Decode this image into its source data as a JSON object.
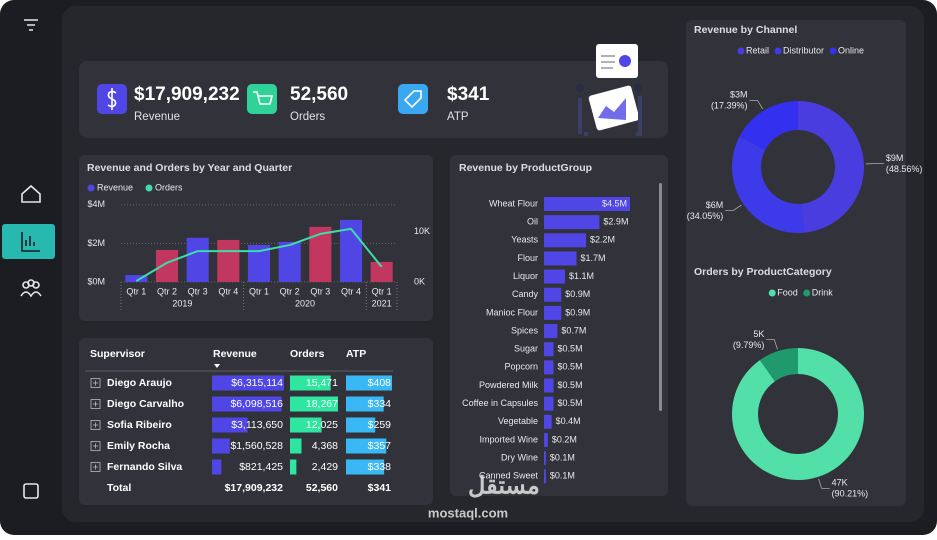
{
  "kpis": [
    {
      "value": "$17,909,232",
      "label": "Revenue"
    },
    {
      "value": "52,560",
      "label": "Orders"
    },
    {
      "value": "$341",
      "label": "ATP"
    }
  ],
  "chart_data": [
    {
      "type": "combo",
      "title": "Revenue and Orders by Year and Quarter",
      "categories": [
        "Qtr 1",
        "Qtr 2",
        "Qtr 3",
        "Qtr 4",
        "Qtr 1",
        "Qtr 2",
        "Qtr 3",
        "Qtr 4",
        "Qtr 1"
      ],
      "groups": [
        {
          "label": "2019",
          "span": 4
        },
        {
          "label": "2020",
          "span": 4
        },
        {
          "label": "2021",
          "span": 1
        }
      ],
      "series": [
        {
          "name": "Revenue",
          "type": "bar",
          "color": "#4f46e5",
          "colors": [
            "#4f46e5",
            "#c2375f",
            "#4f46e5",
            "#c2375f",
            "#4f46e5",
            "#4f46e5",
            "#c2375f",
            "#4f46e5",
            "#c2375f"
          ],
          "values": [
            360000,
            1660000,
            2290000,
            2180000,
            1920000,
            2080000,
            2860000,
            3220000,
            1040000
          ]
        },
        {
          "name": "Orders",
          "type": "line",
          "axis": "y2",
          "color": "#3ddcaa",
          "values": [
            200,
            3800,
            6100,
            6100,
            6100,
            7300,
            9500,
            10500,
            3000
          ]
        }
      ],
      "ylim": [
        0,
        4200000
      ],
      "yticks": [
        {
          "value": 0,
          "label": "$0M"
        },
        {
          "value": 2000000,
          "label": "$2M"
        },
        {
          "value": 4000000,
          "label": "$4M"
        }
      ],
      "y2lim": [
        0,
        16000
      ],
      "y2ticks": [
        {
          "value": 0,
          "label": "0K"
        },
        {
          "value": 10000,
          "label": "10K"
        }
      ],
      "grid": true
    },
    {
      "type": "hbar",
      "title": "Revenue by ProductGroup",
      "color": "#4f46e5",
      "categories": [
        "Wheat Flour",
        "Oil",
        "Yeasts",
        "Flour",
        "Liquor",
        "Candy",
        "Manioc Flour",
        "Spices",
        "Sugar",
        "Popcorn",
        "Powdered Milk",
        "Coffee in Capsules",
        "Vegetable",
        "Imported Wine",
        "Dry Wine",
        "Canned Sweet"
      ],
      "values": [
        4500000,
        2900000,
        2200000,
        1700000,
        1100000,
        900000,
        900000,
        700000,
        500000,
        500000,
        500000,
        500000,
        400000,
        200000,
        100000,
        100000
      ],
      "value_labels": [
        "$4.5M",
        "$2.9M",
        "$2.2M",
        "$1.7M",
        "$1.1M",
        "$0.9M",
        "$0.9M",
        "$0.7M",
        "$0.5M",
        "$0.5M",
        "$0.5M",
        "$0.5M",
        "$0.4M",
        "$0.2M",
        "$0.1M",
        "$0.1M"
      ]
    },
    {
      "type": "donut",
      "title": "Revenue by Channel",
      "categories": [
        "Retail",
        "Distributor",
        "Online"
      ],
      "colors": [
        "#4a3de0",
        "#3d3be9",
        "#3430f0"
      ],
      "values": [
        8696723,
        6098094,
        3114415
      ],
      "value_labels": [
        "$9M",
        "$6M",
        "$3M"
      ],
      "percent_labels": [
        "(48.56%)",
        "(34.05%)",
        "(17.39%)"
      ]
    },
    {
      "type": "donut",
      "title": "Orders by ProductCategory",
      "categories": [
        "Food",
        "Drink"
      ],
      "colors": [
        "#52dfa8",
        "#1f9a6c"
      ],
      "values": [
        47414,
        5146
      ],
      "value_labels": [
        "47K",
        "5K"
      ],
      "percent_labels": [
        "(90.21%)",
        "(9.79%)"
      ]
    }
  ],
  "table": {
    "columns": [
      "Supervisor",
      "Revenue",
      "Orders",
      "ATP"
    ],
    "rows": [
      [
        "Diego Araujo",
        {
          "value": 6315114,
          "label": "$6,315,114"
        },
        {
          "value": 15471,
          "label": "15,471"
        },
        {
          "value": 408,
          "label": "$408"
        }
      ],
      [
        "Diego Carvalho",
        {
          "value": 6098516,
          "label": "$6,098,516"
        },
        {
          "value": 18267,
          "label": "18,267"
        },
        {
          "value": 334,
          "label": "$334"
        }
      ],
      [
        "Sofia Ribeiro",
        {
          "value": 3113650,
          "label": "$3,113,650"
        },
        {
          "value": 12025,
          "label": "12,025"
        },
        {
          "value": 259,
          "label": "$259"
        }
      ],
      [
        "Emily Rocha",
        {
          "value": 1560528,
          "label": "$1,560,528"
        },
        {
          "value": 4368,
          "label": "4,368"
        },
        {
          "value": 357,
          "label": "$357"
        }
      ],
      [
        "Fernando Silva",
        {
          "value": 821425,
          "label": "$821,425"
        },
        {
          "value": 2429,
          "label": "2,429"
        },
        {
          "value": 338,
          "label": "$338"
        }
      ]
    ],
    "total": [
      "Total",
      "$17,909,232",
      "52,560",
      "$341"
    ]
  },
  "watermark": [
    "مستقل",
    "mostaql.com"
  ]
}
